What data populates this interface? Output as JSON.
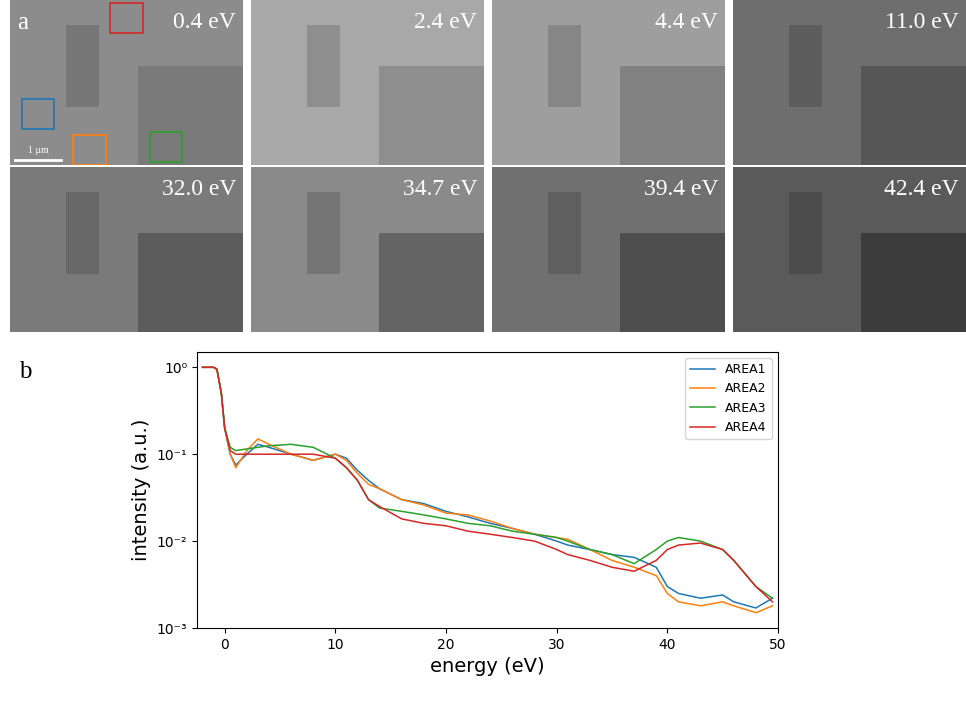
{
  "figure": {
    "panel_labels": [
      "a",
      "b"
    ],
    "image_energies": [
      "0.4 eV",
      "2.4 eV",
      "4.4 eV",
      "11.0 eV",
      "32.0 eV",
      "34.7 eV",
      "39.4 eV",
      "42.4 eV"
    ],
    "scale_bar": "1 µm"
  },
  "chart_data": {
    "type": "line",
    "x_label": "energy (eV)",
    "y_label": "intensity (a.u.)",
    "log": "y",
    "legend": "upper right",
    "xlim": [
      -2.5,
      50
    ],
    "xticks": [
      0,
      10,
      20,
      30,
      40,
      50
    ],
    "ylim": [
      0.001,
      1.5
    ],
    "yticks": [
      {
        "value": 0.001,
        "label": "10⁻³"
      },
      {
        "value": 0.01,
        "label": "10⁻²"
      },
      {
        "value": 0.1,
        "label": "10⁻¹"
      },
      {
        "value": 1,
        "label": "10⁰"
      }
    ],
    "x": [
      -2,
      -1,
      -0.7,
      -0.3,
      0,
      0.5,
      1,
      2,
      3,
      4,
      6,
      8,
      10,
      11,
      12,
      13,
      14,
      16,
      18,
      20,
      22,
      24,
      26,
      28,
      30,
      31,
      33,
      35,
      37,
      39,
      40,
      41,
      43,
      45,
      46,
      48,
      49.5
    ],
    "series": [
      {
        "name": "AREA1",
        "color": "#1f77b4",
        "values": [
          1,
          1,
          0.95,
          0.5,
          0.2,
          0.1,
          0.075,
          0.1,
          0.13,
          0.12,
          0.1,
          0.085,
          0.1,
          0.09,
          0.065,
          0.05,
          0.04,
          0.03,
          0.027,
          0.022,
          0.019,
          0.016,
          0.014,
          0.012,
          0.01,
          0.009,
          0.008,
          0.007,
          0.0065,
          0.005,
          0.003,
          0.0025,
          0.0022,
          0.0024,
          0.002,
          0.0017,
          0.0022
        ]
      },
      {
        "name": "AREA2",
        "color": "#ff7f0e",
        "values": [
          1,
          1,
          0.95,
          0.5,
          0.2,
          0.1,
          0.07,
          0.11,
          0.15,
          0.13,
          0.1,
          0.085,
          0.1,
          0.085,
          0.06,
          0.045,
          0.04,
          0.03,
          0.026,
          0.021,
          0.02,
          0.017,
          0.014,
          0.012,
          0.011,
          0.0105,
          0.008,
          0.006,
          0.005,
          0.004,
          0.0025,
          0.002,
          0.0018,
          0.002,
          0.0018,
          0.0015,
          0.0018
        ]
      },
      {
        "name": "AREA3",
        "color": "#2ca02c",
        "values": [
          1,
          1,
          0.95,
          0.5,
          0.2,
          0.12,
          0.11,
          0.115,
          0.12,
          0.125,
          0.13,
          0.12,
          0.09,
          0.07,
          0.05,
          0.03,
          0.024,
          0.022,
          0.02,
          0.018,
          0.016,
          0.015,
          0.013,
          0.012,
          0.011,
          0.01,
          0.008,
          0.007,
          0.0055,
          0.008,
          0.01,
          0.011,
          0.01,
          0.008,
          0.006,
          0.003,
          0.0022
        ]
      },
      {
        "name": "AREA4",
        "color": "#d62728",
        "values": [
          1,
          1,
          0.95,
          0.5,
          0.2,
          0.11,
          0.1,
          0.1,
          0.1,
          0.1,
          0.1,
          0.1,
          0.09,
          0.07,
          0.05,
          0.03,
          0.025,
          0.018,
          0.016,
          0.015,
          0.013,
          0.012,
          0.011,
          0.01,
          0.008,
          0.007,
          0.006,
          0.005,
          0.0045,
          0.006,
          0.008,
          0.009,
          0.0095,
          0.008,
          0.006,
          0.003,
          0.002
        ]
      }
    ]
  }
}
